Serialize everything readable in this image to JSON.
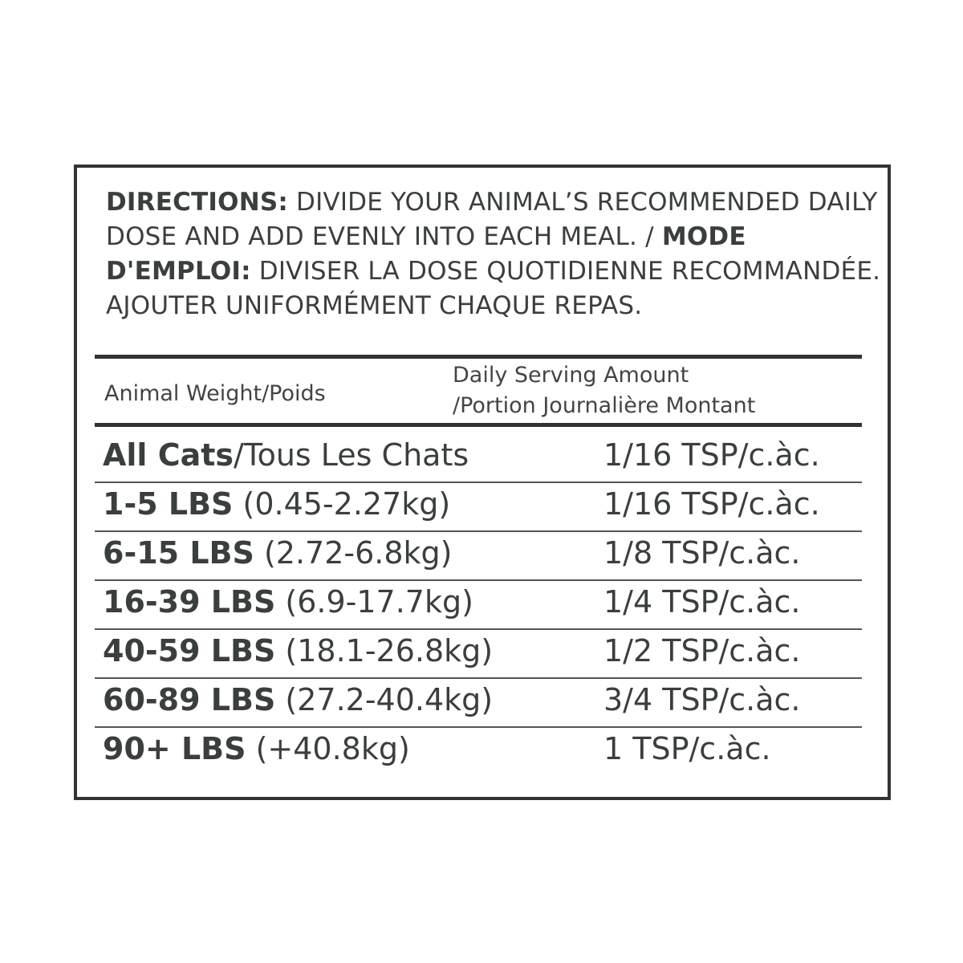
{
  "directions": {
    "label_en": "DIRECTIONS:",
    "text_en": " DIVIDE YOUR ANIMAL’S RECOMMENDED DAILY DOSE AND ADD EVENLY INTO EACH MEAL. / ",
    "label_fr": "MODE D'EMPLOI:",
    "text_fr": " DIVISER LA DOSE QUOTIDIENNE RECOMMANDÉE. AJOUTER UNIFORMÉMENT CHAQUE REPAS."
  },
  "table": {
    "headers": {
      "weight": "Animal Weight/Poids",
      "amount_line1": "Daily Serving Amount",
      "amount_line2": "/Portion Journalière Montant"
    },
    "rows": [
      {
        "bold": "All Cats",
        "rest": "/Tous Les Chats",
        "amount": "1/16 TSP/c.àc."
      },
      {
        "bold": "1-5 LBS",
        "rest": " (0.45-2.27kg)",
        "amount": "1/16 TSP/c.àc."
      },
      {
        "bold": "6-15 LBS",
        "rest": " (2.72-6.8kg)",
        "amount": "1/8 TSP/c.àc."
      },
      {
        "bold": "16-39 LBS",
        "rest": " (6.9-17.7kg)",
        "amount": "1/4 TSP/c.àc."
      },
      {
        "bold": "40-59 LBS",
        "rest": " (18.1-26.8kg)",
        "amount": "1/2 TSP/c.àc."
      },
      {
        "bold": "60-89 LBS",
        "rest": " (27.2-40.4kg)",
        "amount": "3/4 TSP/c.àc."
      },
      {
        "bold": "90+ LBS",
        "rest": " (+40.8kg)",
        "amount": "1 TSP/c.àc."
      }
    ]
  }
}
